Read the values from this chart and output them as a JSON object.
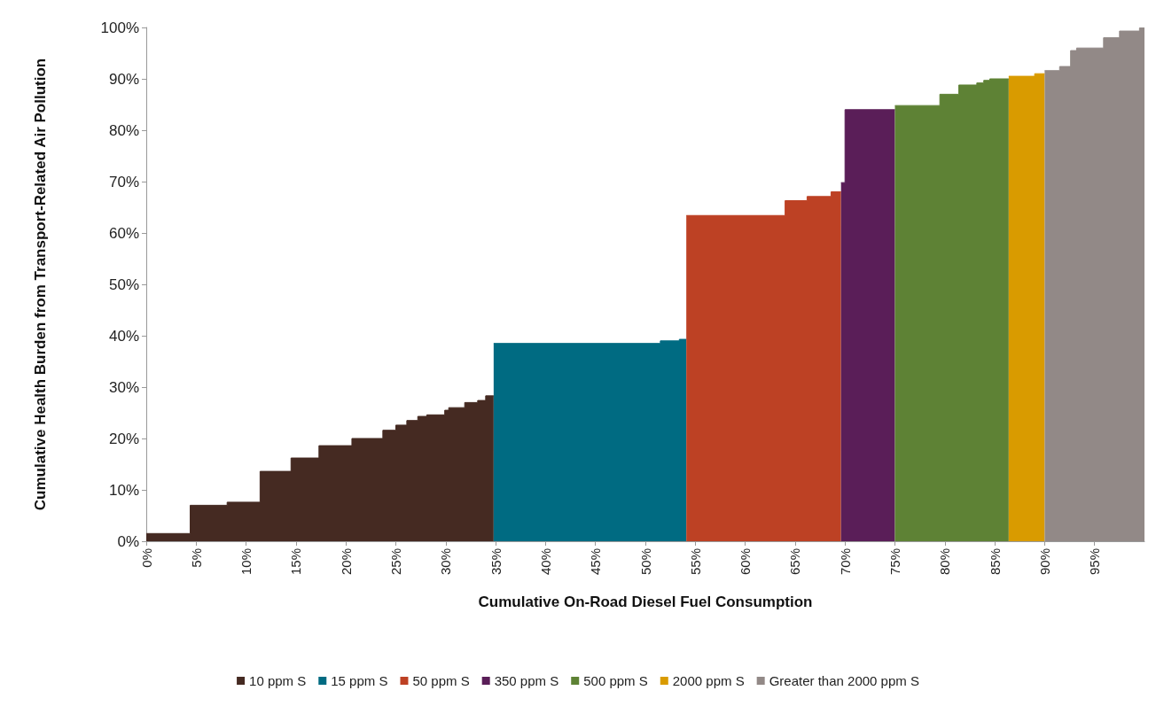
{
  "chart_data": {
    "type": "area",
    "xlabel": "Cumulative On-Road Diesel Fuel Consumption",
    "ylabel": "Cumulative Health Burden from Transport-Related Air Pollution",
    "xlim": [
      0,
      100
    ],
    "xticks": [
      {
        "value": 0,
        "label": "0%"
      },
      {
        "value": 5,
        "label": "5%"
      },
      {
        "value": 10,
        "label": "10%"
      },
      {
        "value": 15,
        "label": "15%"
      },
      {
        "value": 20,
        "label": "20%"
      },
      {
        "value": 25,
        "label": "25%"
      },
      {
        "value": 30,
        "label": "30%"
      },
      {
        "value": 35,
        "label": "35%"
      },
      {
        "value": 40,
        "label": "40%"
      },
      {
        "value": 45,
        "label": "45%"
      },
      {
        "value": 50,
        "label": "50%"
      },
      {
        "value": 55,
        "label": "55%"
      },
      {
        "value": 60,
        "label": "60%"
      },
      {
        "value": 65,
        "label": "65%"
      },
      {
        "value": 70,
        "label": "70%"
      },
      {
        "value": 75,
        "label": "75%"
      },
      {
        "value": 80,
        "label": "80%"
      },
      {
        "value": 85,
        "label": "85%"
      },
      {
        "value": 90,
        "label": "90%"
      },
      {
        "value": 95,
        "label": "95%"
      }
    ],
    "ylim": [
      0,
      100
    ],
    "yticks": [
      {
        "value": 0,
        "label": "0%"
      },
      {
        "value": 10,
        "label": "10%"
      },
      {
        "value": 20,
        "label": "20%"
      },
      {
        "value": 30,
        "label": "30%"
      },
      {
        "value": 40,
        "label": "40%"
      },
      {
        "value": 50,
        "label": "50%"
      },
      {
        "value": 60,
        "label": "60%"
      },
      {
        "value": 70,
        "label": "70%"
      },
      {
        "value": 80,
        "label": "80%"
      },
      {
        "value": 90,
        "label": "90%"
      },
      {
        "value": 100,
        "label": "100%"
      }
    ],
    "grid": false,
    "legend": "bottom",
    "series": [
      {
        "name": "10 ppm S",
        "color": "#452a22",
        "x": [
          0,
          4.4,
          4.4,
          8.1,
          8.1,
          11.4,
          11.4,
          14.5,
          14.5,
          17.3,
          17.3,
          20.6,
          20.6,
          23.7,
          23.7,
          25,
          25,
          26.1,
          26.1,
          27.2,
          27.2,
          28.1,
          28.1,
          29.9,
          29.9,
          30.3,
          30.3,
          31.9,
          31.9,
          33.2,
          33.2,
          34,
          34,
          34.8
        ],
        "values": [
          1.5,
          1.5,
          7,
          7,
          7.6,
          7.6,
          13.6,
          13.6,
          16.2,
          16.2,
          18.6,
          18.6,
          20,
          20,
          21.6,
          21.6,
          22.6,
          22.6,
          23.5,
          23.5,
          24.3,
          24.3,
          24.6,
          24.6,
          25.5,
          25.5,
          26,
          26,
          27,
          27,
          27.4,
          27.4,
          28.3,
          28.3
        ]
      },
      {
        "name": "15 ppm S",
        "color": "#006b82",
        "x": [
          34.8,
          51.5,
          51.5,
          53.4,
          53.4,
          54.1
        ],
        "values": [
          38.5,
          38.5,
          39,
          39,
          39.3,
          39.3
        ]
      },
      {
        "name": "50 ppm S",
        "color": "#bd4124",
        "x": [
          54.1,
          64,
          64,
          66.2,
          66.2,
          68.6,
          68.6,
          69.6
        ],
        "values": [
          63.4,
          63.4,
          66.3,
          66.3,
          67.1,
          67.1,
          68,
          68
        ]
      },
      {
        "name": "350 ppm S",
        "color": "#5a1e58",
        "x": [
          69.6,
          70,
          70,
          75
        ],
        "values": [
          69.8,
          69.8,
          84,
          84
        ]
      },
      {
        "name": "500 ppm S",
        "color": "#5e8235",
        "x": [
          75,
          79.5,
          79.5,
          81.4,
          81.4,
          83.2,
          83.2,
          83.9,
          83.9,
          84.5,
          84.5,
          86.4
        ],
        "values": [
          84.8,
          84.8,
          87,
          87,
          88.8,
          88.8,
          89.2,
          89.2,
          89.7,
          89.7,
          90,
          90
        ]
      },
      {
        "name": "2000 ppm S",
        "color": "#d99b00",
        "x": [
          86.4,
          89,
          89,
          90
        ],
        "values": [
          90.5,
          90.5,
          91,
          91
        ]
      },
      {
        "name": "Greater than 2000 ppm S",
        "color": "#928987",
        "x": [
          90,
          91.5,
          91.5,
          92.6,
          92.6,
          93.2,
          93.2,
          95.9,
          95.9,
          97.5,
          97.5,
          99.5,
          99.5,
          100
        ],
        "values": [
          91.6,
          91.6,
          92.4,
          92.4,
          95.5,
          95.5,
          96,
          96,
          98,
          98,
          99.3,
          99.3,
          99.9,
          99.9
        ]
      }
    ]
  }
}
